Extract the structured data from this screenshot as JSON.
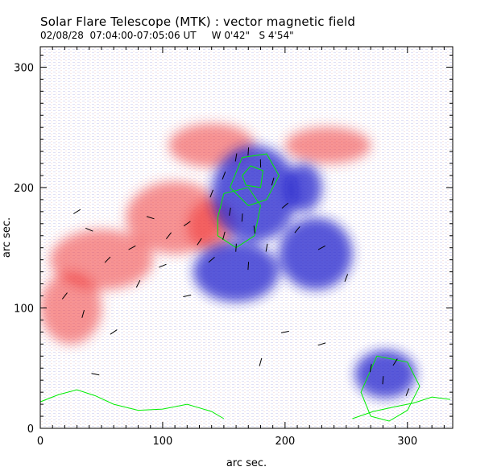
{
  "header": {
    "title": "Solar Flare Telescope (MTK) : vector magnetic field",
    "subtitle": "02/08/28  07:04:00-07:05:06 UT     W 0'42\"   S 4'54\""
  },
  "chart_data": {
    "type": "heatmap",
    "title": "Solar Flare Telescope (MTK) : vector magnetic field",
    "subtitle": "02/08/28  07:04:00-07:05:06 UT     W 0'42\"   S 4'54\"",
    "xlabel": "arc sec.",
    "ylabel": "arc sec.",
    "xlim": [
      0,
      337
    ],
    "ylim": [
      0,
      317
    ],
    "x_ticks": [
      0,
      100,
      200,
      300
    ],
    "y_ticks": [
      0,
      100,
      200,
      300
    ],
    "colors": {
      "positive": "#f03838",
      "negative": "#2222cc",
      "contour": "#00ee00",
      "vectors": "#000000",
      "axes": "#000000"
    },
    "positive_polarity_regions": [
      {
        "cx": 110,
        "cy": 175,
        "rx": 40,
        "ry": 30
      },
      {
        "cx": 140,
        "cy": 168,
        "rx": 20,
        "ry": 22
      },
      {
        "cx": 50,
        "cy": 140,
        "rx": 42,
        "ry": 25
      },
      {
        "cx": 25,
        "cy": 100,
        "rx": 25,
        "ry": 30
      },
      {
        "cx": 140,
        "cy": 235,
        "rx": 35,
        "ry": 18
      },
      {
        "cx": 235,
        "cy": 235,
        "rx": 35,
        "ry": 15
      }
    ],
    "negative_polarity_regions": [
      {
        "cx": 175,
        "cy": 195,
        "rx": 35,
        "ry": 40
      },
      {
        "cx": 160,
        "cy": 130,
        "rx": 35,
        "ry": 25
      },
      {
        "cx": 215,
        "cy": 200,
        "rx": 15,
        "ry": 20
      },
      {
        "cx": 282,
        "cy": 45,
        "rx": 25,
        "ry": 20
      },
      {
        "cx": 225,
        "cy": 145,
        "rx": 30,
        "ry": 30
      }
    ],
    "contours": [
      [
        [
          270,
          10
        ],
        [
          262,
          30
        ],
        [
          275,
          60
        ],
        [
          300,
          55
        ],
        [
          310,
          35
        ],
        [
          300,
          15
        ],
        [
          285,
          6
        ],
        [
          270,
          10
        ]
      ],
      [
        [
          155,
          200
        ],
        [
          165,
          225
        ],
        [
          185,
          228
        ],
        [
          195,
          210
        ],
        [
          185,
          190
        ],
        [
          170,
          185
        ],
        [
          155,
          200
        ]
      ],
      [
        [
          165,
          210
        ],
        [
          172,
          218
        ],
        [
          182,
          214
        ],
        [
          180,
          200
        ],
        [
          168,
          202
        ],
        [
          165,
          210
        ]
      ],
      [
        [
          145,
          175
        ],
        [
          150,
          195
        ],
        [
          170,
          200
        ],
        [
          180,
          185
        ],
        [
          175,
          160
        ],
        [
          160,
          150
        ],
        [
          145,
          160
        ],
        [
          145,
          175
        ]
      ],
      [
        [
          0,
          22
        ],
        [
          15,
          28
        ],
        [
          30,
          32
        ],
        [
          45,
          27
        ],
        [
          60,
          20
        ],
        [
          80,
          15
        ],
        [
          100,
          16
        ],
        [
          120,
          20
        ],
        [
          140,
          14
        ],
        [
          150,
          8
        ]
      ],
      [
        [
          255,
          8
        ],
        [
          272,
          14
        ],
        [
          290,
          18
        ],
        [
          305,
          21
        ],
        [
          320,
          26
        ],
        [
          335,
          24
        ]
      ]
    ],
    "vectors": [
      [
        30,
        180,
        0.55
      ],
      [
        40,
        165,
        -0.4
      ],
      [
        55,
        140,
        0.8
      ],
      [
        75,
        150,
        0.5
      ],
      [
        90,
        175,
        -0.3
      ],
      [
        105,
        160,
        0.9
      ],
      [
        120,
        170,
        0.6
      ],
      [
        130,
        155,
        1.0
      ],
      [
        140,
        140,
        0.7
      ],
      [
        100,
        135,
        0.4
      ],
      [
        80,
        120,
        1.1
      ],
      [
        20,
        110,
        0.9
      ],
      [
        35,
        95,
        1.3
      ],
      [
        150,
        210,
        1.2
      ],
      [
        160,
        225,
        1.4
      ],
      [
        170,
        230,
        1.5
      ],
      [
        180,
        220,
        1.6
      ],
      [
        190,
        205,
        1.3
      ],
      [
        155,
        180,
        1.4
      ],
      [
        165,
        175,
        1.5
      ],
      [
        175,
        165,
        1.7
      ],
      [
        185,
        150,
        1.4
      ],
      [
        160,
        150,
        1.5
      ],
      [
        170,
        135,
        1.5
      ],
      [
        150,
        160,
        1.3
      ],
      [
        140,
        195,
        1.2
      ],
      [
        200,
        185,
        0.7
      ],
      [
        210,
        165,
        0.9
      ],
      [
        230,
        150,
        0.5
      ],
      [
        250,
        125,
        1.2
      ],
      [
        280,
        40,
        1.5
      ],
      [
        290,
        55,
        1.0
      ],
      [
        300,
        30,
        1.2
      ],
      [
        270,
        50,
        1.4
      ],
      [
        230,
        70,
        0.3
      ],
      [
        200,
        80,
        0.2
      ],
      [
        120,
        110,
        0.2
      ],
      [
        60,
        80,
        0.6
      ],
      [
        45,
        45,
        -0.2
      ],
      [
        180,
        55,
        1.3
      ]
    ]
  }
}
